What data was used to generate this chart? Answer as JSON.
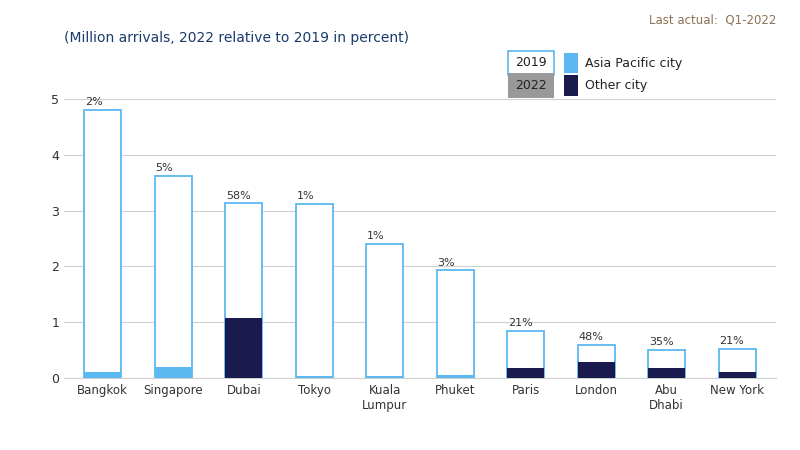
{
  "cities": [
    "Bangkok",
    "Singapore",
    "Dubai",
    "Tokyo",
    "Kuala\nLumpur",
    "Phuket",
    "Paris",
    "London",
    "Abu\nDhabi",
    "New York"
  ],
  "val_2019": [
    4.8,
    3.62,
    3.13,
    3.12,
    2.4,
    1.93,
    0.85,
    0.6,
    0.5,
    0.52
  ],
  "val_2022": [
    0.1,
    0.19,
    1.08,
    0.04,
    0.04,
    0.06,
    0.18,
    0.29,
    0.18,
    0.11
  ],
  "pct_labels": [
    "2%",
    "5%",
    "58%",
    "1%",
    "1%",
    "3%",
    "21%",
    "48%",
    "35%",
    "21%"
  ],
  "is_ap": [
    true,
    true,
    false,
    true,
    true,
    true,
    false,
    false,
    false,
    false
  ],
  "color_ap_outline": "#5bb8f0",
  "color_ap_fill_2022": "#5bb8f0",
  "color_other_fill_2022": "#1a1a4e",
  "color_2019_bar_face": "#ffffff",
  "color_grid": "#d0d0d0",
  "title": "(Million arrivals, 2022 relative to 2019 in percent)",
  "note": "Last actual:  Q1-2022",
  "ylim": [
    0,
    5
  ],
  "yticks": [
    0,
    1,
    2,
    3,
    4,
    5
  ],
  "legend_2019_facecolor": "#ffffff",
  "legend_2022_facecolor": "#999999",
  "legend_ap_color": "#5bb8f0",
  "legend_other_color": "#1a1a4e",
  "bar_width": 0.52,
  "note_color": "#8B7355",
  "title_color": "#1a3a6b"
}
